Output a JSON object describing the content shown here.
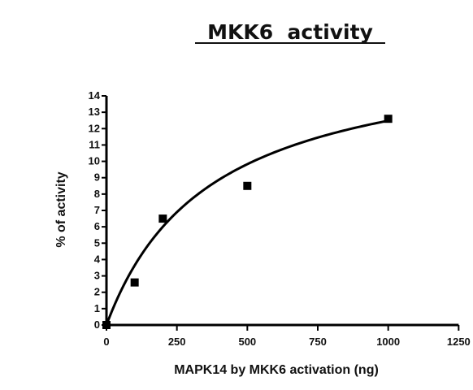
{
  "chart_data": {
    "type": "scatter",
    "title": "MKK6  activity",
    "xlabel": "MAPK14 by MKK6 activation (ng)",
    "ylabel": "% of activity",
    "xlim": [
      0,
      1200
    ],
    "ylim": [
      0,
      14
    ],
    "x_ticks": [
      0,
      250,
      500,
      750,
      1000,
      1250
    ],
    "y_ticks": [
      0,
      1,
      2,
      3,
      4,
      5,
      6,
      7,
      8,
      9,
      10,
      11,
      12,
      13,
      14
    ],
    "grid": false,
    "legend": "none",
    "series": [
      {
        "points": [
          {
            "x": 0,
            "y": 0
          },
          {
            "x": 100,
            "y": 2.6
          },
          {
            "x": 200,
            "y": 6.5
          },
          {
            "x": 500,
            "y": 8.5
          },
          {
            "x": 1000,
            "y": 12.6
          }
        ],
        "fit": {
          "type": "michaelis-menten",
          "vmax": 17.1,
          "km": 370
        }
      }
    ],
    "colors": {
      "marks": "#000000",
      "background": "#ffffff"
    }
  }
}
